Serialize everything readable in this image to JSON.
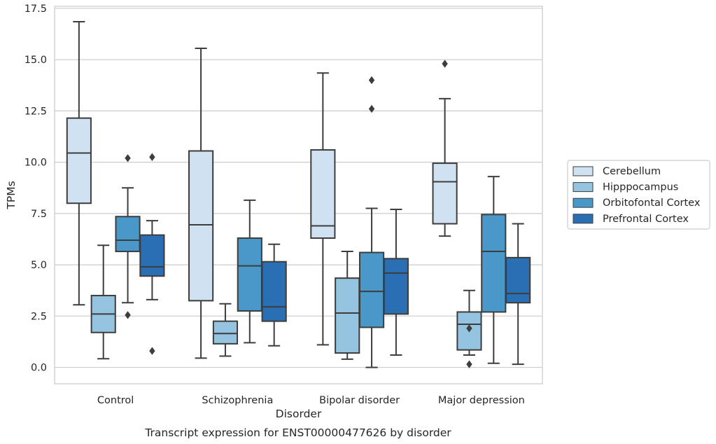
{
  "chart_data": {
    "type": "box",
    "title": "",
    "caption": "Transcript expression for ENST00000477626 by disorder",
    "xlabel": "Disorder",
    "ylabel": "TPMs",
    "ylim": [
      -0.8,
      17.6
    ],
    "yticks": [
      "0.0",
      "2.5",
      "5.0",
      "7.5",
      "10.0",
      "12.5",
      "15.0",
      "17.5"
    ],
    "grid": "horizontal",
    "legend_position": "right",
    "categories": [
      "Control",
      "Schizophrenia",
      "Bipolar disorder",
      "Major depression"
    ],
    "series": [
      {
        "name": "Cerebellum",
        "color": "#d0e1f2",
        "boxes": [
          {
            "whislo": 3.05,
            "q1": 8.0,
            "med": 10.45,
            "q3": 12.15,
            "whishi": 16.85,
            "fliers": []
          },
          {
            "whislo": 0.45,
            "q1": 3.25,
            "med": 6.95,
            "q3": 10.55,
            "whishi": 15.55,
            "fliers": []
          },
          {
            "whislo": 1.1,
            "q1": 6.3,
            "med": 6.9,
            "q3": 10.6,
            "whishi": 14.35,
            "fliers": []
          },
          {
            "whislo": 6.4,
            "q1": 7.0,
            "med": 9.05,
            "q3": 9.95,
            "whishi": 13.1,
            "fliers": [
              14.8
            ]
          }
        ]
      },
      {
        "name": "Hipppocampus",
        "color": "#94c4df",
        "boxes": [
          {
            "whislo": 0.42,
            "q1": 1.7,
            "med": 2.6,
            "q3": 3.5,
            "whishi": 5.95,
            "fliers": []
          },
          {
            "whislo": 0.55,
            "q1": 1.15,
            "med": 1.65,
            "q3": 2.25,
            "whishi": 3.1,
            "fliers": []
          },
          {
            "whislo": 0.4,
            "q1": 0.7,
            "med": 2.65,
            "q3": 4.35,
            "whishi": 5.65,
            "fliers": []
          },
          {
            "whislo": 0.6,
            "q1": 0.85,
            "med": 2.1,
            "q3": 2.7,
            "whishi": 3.75,
            "fliers": [
              1.9,
              0.15
            ]
          }
        ]
      },
      {
        "name": "Orbitofontal Cortex",
        "color": "#4a98c9",
        "boxes": [
          {
            "whislo": 3.15,
            "q1": 5.65,
            "med": 6.2,
            "q3": 7.35,
            "whishi": 8.75,
            "fliers": [
              10.2,
              2.55
            ]
          },
          {
            "whislo": 1.2,
            "q1": 2.75,
            "med": 4.95,
            "q3": 6.3,
            "whishi": 8.15,
            "fliers": []
          },
          {
            "whislo": 0.0,
            "q1": 1.95,
            "med": 3.7,
            "q3": 5.6,
            "whishi": 7.75,
            "fliers": [
              14.0,
              12.6
            ]
          },
          {
            "whislo": 0.2,
            "q1": 2.7,
            "med": 5.65,
            "q3": 7.45,
            "whishi": 9.3,
            "fliers": []
          }
        ]
      },
      {
        "name": "Prefrontal Cortex",
        "color": "#2a6fb3",
        "boxes": [
          {
            "whislo": 3.3,
            "q1": 4.45,
            "med": 4.9,
            "q3": 6.45,
            "whishi": 7.15,
            "fliers": [
              10.25,
              0.8
            ]
          },
          {
            "whislo": 1.05,
            "q1": 2.25,
            "med": 2.95,
            "q3": 5.15,
            "whishi": 6.0,
            "fliers": []
          },
          {
            "whislo": 0.6,
            "q1": 2.6,
            "med": 4.6,
            "q3": 5.3,
            "whishi": 7.7,
            "fliers": []
          },
          {
            "whislo": 0.15,
            "q1": 3.15,
            "med": 3.6,
            "q3": 5.35,
            "whishi": 7.0,
            "fliers": []
          }
        ]
      }
    ]
  }
}
